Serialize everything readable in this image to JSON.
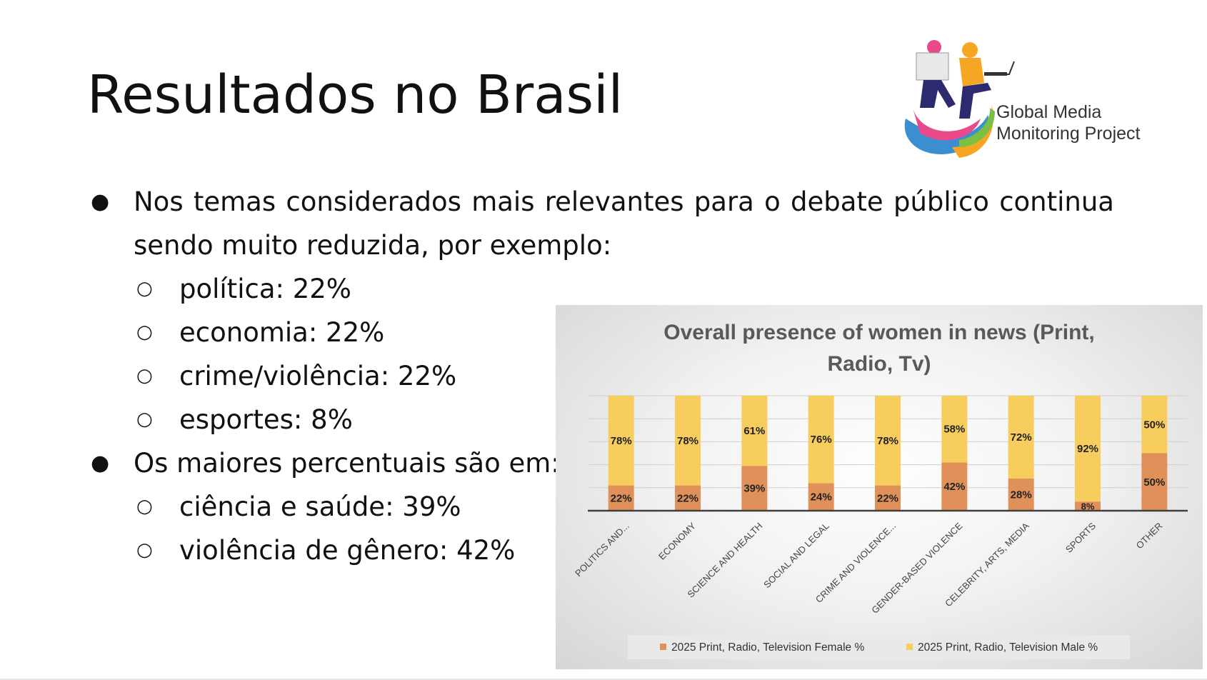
{
  "slide": {
    "title": "Resultados no Brasil",
    "logo_line1": "Global Media",
    "logo_line2": "Monitoring Project"
  },
  "bullets": [
    {
      "text": "Nos temas considerados mais relevantes para o debate público continua sendo muito reduzida, por exemplo:",
      "subitems": [
        "política: 22%",
        "economia: 22%",
        "crime/violência: 22%",
        "esportes: 8%"
      ]
    },
    {
      "text": "Os maiores percentuais são em:",
      "subitems": [
        "ciência e saúde: 39%",
        "violência de gênero: 42%"
      ]
    }
  ],
  "chart_data": {
    "type": "bar",
    "stacked": true,
    "title": "Overall presence of women in news (Print, Radio, Tv)",
    "categories": [
      "POLITICS AND...",
      "ECONOMY",
      "SCIENCE AND HEALTH",
      "SOCIAL AND LEGAL",
      "CRIME AND VIOLENCE...",
      "GENDER-BASED VIOLENCE",
      "CELEBRITY, ARTS, MEDIA",
      "SPORTS",
      "OTHER"
    ],
    "series": [
      {
        "name": "2025 Print, Radio, Television Female %",
        "values": [
          22,
          22,
          39,
          24,
          22,
          42,
          28,
          8,
          50
        ],
        "color": "#e0915a"
      },
      {
        "name": "2025 Print, Radio, Television Male %",
        "values": [
          78,
          78,
          61,
          76,
          78,
          58,
          72,
          92,
          50
        ],
        "color": "#f7cd5e"
      }
    ],
    "ylim": [
      0,
      100
    ],
    "legend": "bottom",
    "data_label_suffix": "%"
  }
}
